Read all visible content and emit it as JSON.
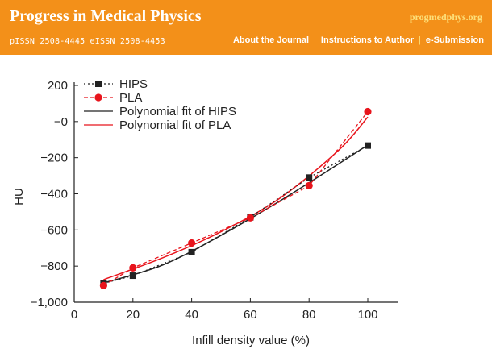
{
  "header": {
    "title": "Progress in Medical Physics",
    "url_text": "progmedphys.org",
    "issn_text": "pISSN 2508-4445  eISSN 2508-4453",
    "nav": [
      {
        "label": "About the Journal"
      },
      {
        "label": "Instructions to Author"
      },
      {
        "label": "e-Submission"
      }
    ],
    "bg_color": "#f39019",
    "accent_color": "#fde07a"
  },
  "chart_data": {
    "type": "scatter",
    "title": "",
    "xlabel": "Infill density value (%)",
    "ylabel": "HU",
    "xlim": [
      0,
      110
    ],
    "ylim": [
      -1000,
      200
    ],
    "x_ticks": [
      "0",
      "20",
      "40",
      "60",
      "80",
      "100"
    ],
    "y_ticks": [
      "200",
      "−0",
      "−200",
      "−400",
      "−600",
      "−800",
      "−1,000"
    ],
    "grid": false,
    "legend_position": "top-left",
    "series": [
      {
        "name": "HIPS",
        "style": "dotted-line-square-markers",
        "color": "#222222",
        "x": [
          10,
          20,
          40,
          60,
          80,
          100
        ],
        "y": [
          -895,
          -853,
          -723,
          -530,
          -310,
          -133
        ]
      },
      {
        "name": "PLA",
        "style": "dashed-line-circle-markers",
        "color": "#e8141c",
        "x": [
          10,
          20,
          40,
          60,
          80,
          100
        ],
        "y": [
          -908,
          -810,
          -672,
          -533,
          -355,
          55
        ]
      },
      {
        "name": "Polynomial fit of HIPS",
        "style": "solid-line",
        "color": "#222222",
        "x": [
          10,
          30,
          50,
          70,
          90,
          100
        ],
        "y": [
          -893,
          -795,
          -630,
          -440,
          -235,
          -130
        ]
      },
      {
        "name": "Polynomial  fit of PLA",
        "style": "solid-line",
        "color": "#e8141c",
        "x": [
          10,
          30,
          50,
          70,
          90,
          100
        ],
        "y": [
          -875,
          -755,
          -610,
          -425,
          -160,
          25
        ]
      }
    ]
  }
}
